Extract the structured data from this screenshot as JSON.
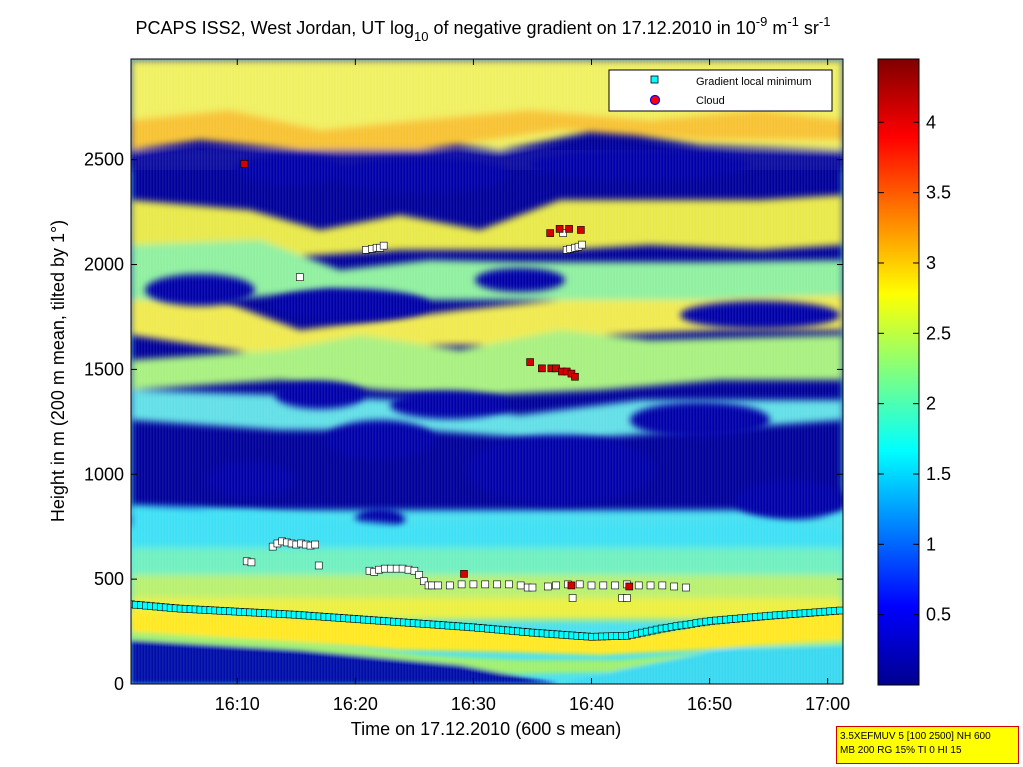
{
  "title": "PCAPS ISS2, West Jordan, UT log10 of negative gradient on 17.12.2010 in 10-9 m-1 sr-1",
  "title_parts": {
    "prefix": "PCAPS ISS2, West Jordan, UT log",
    "sub_10": "10",
    "middle": " of negative gradient on 17.12.2010 in 10",
    "sup_m9": "-9",
    "m": " m",
    "sup_m1a": "-1",
    "sr": " sr",
    "sup_m1b": "-1"
  },
  "info_box": {
    "line1": "3.5XEFMUV 5 [100 2500] NH 600",
    "line2": "MB 200 RG 15% TI 0 HI 15",
    "background": "#ffff00",
    "border": "#d00000"
  },
  "chart_data": {
    "type": "heatmap",
    "colormap": "jet",
    "xlabel": "Time on 17.12.2010 (600 s mean)",
    "ylabel": "Height in m (200 m mean, tilted by 1°)",
    "x_ticks": [
      "16:10",
      "16:20",
      "16:30",
      "16:40",
      "16:50",
      "17:00"
    ],
    "x_tick_minutes": [
      10,
      20,
      30,
      40,
      50,
      60
    ],
    "xlim_minutes_after_1600": [
      1,
      61.3
    ],
    "y_ticks": [
      0,
      500,
      1000,
      1500,
      2000,
      2500
    ],
    "ylim": [
      0,
      2980
    ],
    "colorbar": {
      "ticks": [
        0.5,
        1,
        1.5,
        2,
        2.5,
        3,
        3.5,
        4
      ],
      "range": [
        0,
        4.45
      ]
    },
    "legend": {
      "placement": "top-right",
      "entries": [
        {
          "label": "Gradient local minimum",
          "marker": "square",
          "color": "#00ffff"
        },
        {
          "label": "Cloud",
          "marker": "circle",
          "color": "#ff0000",
          "edge": "#0000ff"
        }
      ]
    },
    "series": [
      {
        "name": "Gradient local minimum",
        "x": [
          1,
          5,
          10,
          15,
          20,
          25,
          30,
          35,
          40,
          43,
          46,
          50,
          55,
          61
        ],
        "y": [
          380,
          360,
          345,
          330,
          310,
          290,
          270,
          245,
          225,
          230,
          265,
          300,
          325,
          350
        ]
      },
      {
        "x": [
          10.8,
          11.2,
          13,
          13.4,
          13.8,
          14.2,
          14.6,
          15,
          15.4,
          15.8,
          16.2,
          16.6,
          16.9,
          21.2,
          21.6,
          22,
          22.5,
          23,
          23.5,
          24,
          24.5,
          25,
          25.4,
          25.8,
          26.2,
          26.5,
          27,
          28,
          29,
          30,
          31,
          32,
          33,
          34,
          34.6,
          35,
          36.3,
          37,
          38,
          39,
          40,
          41,
          42,
          43,
          44,
          45,
          46,
          47,
          48,
          38.4,
          42.6,
          43
        ],
        "y": [
          585,
          580,
          655,
          670,
          680,
          675,
          670,
          665,
          670,
          665,
          660,
          665,
          565,
          540,
          535,
          545,
          550,
          550,
          550,
          550,
          545,
          540,
          520,
          490,
          470,
          470,
          470,
          470,
          475,
          475,
          475,
          475,
          475,
          470,
          460,
          460,
          465,
          470,
          475,
          475,
          470,
          470,
          470,
          475,
          470,
          470,
          470,
          465,
          460,
          410,
          410,
          410
        ],
        "marker": "white-square"
      },
      {
        "x": [
          15.3,
          20.9,
          21.4,
          21.8,
          22.1,
          22.4,
          37.6,
          37.9,
          38.2,
          38.6,
          38.9,
          39.2
        ],
        "y": [
          1940,
          2070,
          2075,
          2080,
          2080,
          2090,
          2150,
          2070,
          2075,
          2080,
          2085,
          2095
        ],
        "marker": "white-square"
      },
      {
        "name": "Cloud",
        "x": [
          10.6,
          36.5,
          37.3,
          38.1,
          39.1,
          34.8,
          35.8,
          36.6,
          37,
          37.5,
          37.9,
          38.3,
          38.6,
          29.2,
          38.3,
          43.2
        ],
        "y": [
          2480,
          2150,
          2170,
          2170,
          2165,
          1535,
          1505,
          1505,
          1505,
          1490,
          1490,
          1480,
          1465,
          525,
          470,
          465
        ]
      }
    ]
  }
}
